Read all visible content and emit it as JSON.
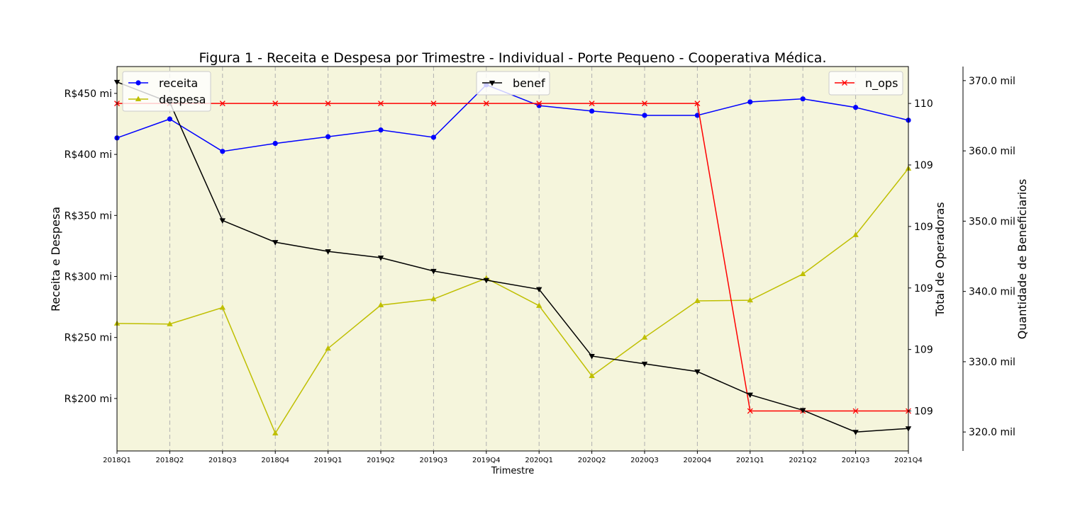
{
  "chart_data": {
    "type": "line",
    "title": "Figura 1 - Receita e Despesa por Trimestre - Individual - Porte Pequeno - Cooperativa Médica.",
    "xlabel": "Trimestre",
    "x": [
      "2018Q1",
      "2018Q2",
      "2018Q3",
      "2018Q4",
      "2019Q1",
      "2019Q2",
      "2019Q3",
      "2019Q4",
      "2020Q1",
      "2020Q2",
      "2020Q3",
      "2020Q4",
      "2021Q1",
      "2021Q2",
      "2021Q3",
      "2021Q4"
    ],
    "background_color": "#f5f5dc",
    "grid": "vertical-dashed",
    "axes": {
      "left": {
        "label": "Receita e Despesa",
        "ylim": [
          157,
          472
        ],
        "ticks": [
          200,
          250,
          300,
          350,
          400,
          450
        ],
        "tick_labels": [
          "R$200 mi",
          "R$250 mi",
          "R$300 mi",
          "R$350 mi",
          "R$400 mi",
          "R$450 mi"
        ]
      },
      "right1": {
        "label": "Total de Operadoras",
        "ylim": [
          108.87,
          110.12
        ],
        "ticks": [
          109,
          109.2,
          109.4,
          109.6,
          109.8,
          110
        ],
        "tick_labels": [
          "109",
          "109",
          "109",
          "109",
          "109",
          "110"
        ]
      },
      "right2": {
        "label": "Quantidade de Beneficiarios",
        "ylim": [
          317.3,
          372.0
        ],
        "ticks": [
          320,
          330,
          340,
          350,
          360,
          370
        ],
        "tick_labels": [
          "320.0 mil",
          "330.0 mil",
          "340.0 mil",
          "350.0 mil",
          "360.0 mil",
          "370.0 mil"
        ]
      }
    },
    "series": [
      {
        "name": "receita",
        "axis": "left",
        "color": "#0000ff",
        "marker": "circle",
        "values": [
          413.5,
          429,
          402.5,
          409,
          414.5,
          420,
          414,
          457,
          440,
          435.5,
          432,
          432,
          443,
          445.5,
          438.5,
          428
        ]
      },
      {
        "name": "despesa",
        "axis": "left",
        "color": "#bfbf00",
        "marker": "triangle-up",
        "values": [
          261.5,
          261,
          274.5,
          171.5,
          241,
          276.5,
          281.5,
          298.5,
          276,
          218.5,
          250,
          280,
          280.5,
          302,
          334,
          388.5
        ]
      },
      {
        "name": "benef",
        "axis": "right2",
        "color": "#000000",
        "marker": "triangle-down",
        "values": [
          369.8,
          366.9,
          350.1,
          347.0,
          345.7,
          344.8,
          342.9,
          341.6,
          340.3,
          330.8,
          329.7,
          328.6,
          325.3,
          323.1,
          320.0,
          320.5
        ]
      },
      {
        "name": "n_ops",
        "axis": "right1",
        "color": "#ff0000",
        "marker": "x",
        "values": [
          110,
          110,
          110,
          110,
          110,
          110,
          110,
          110,
          110,
          110,
          110,
          110,
          109,
          109,
          109,
          109
        ]
      }
    ],
    "legends": [
      {
        "placement": "top-left",
        "series": [
          "receita",
          "despesa"
        ]
      },
      {
        "placement": "top-center",
        "series": [
          "benef"
        ]
      },
      {
        "placement": "top-right",
        "series": [
          "n_ops"
        ]
      }
    ]
  }
}
